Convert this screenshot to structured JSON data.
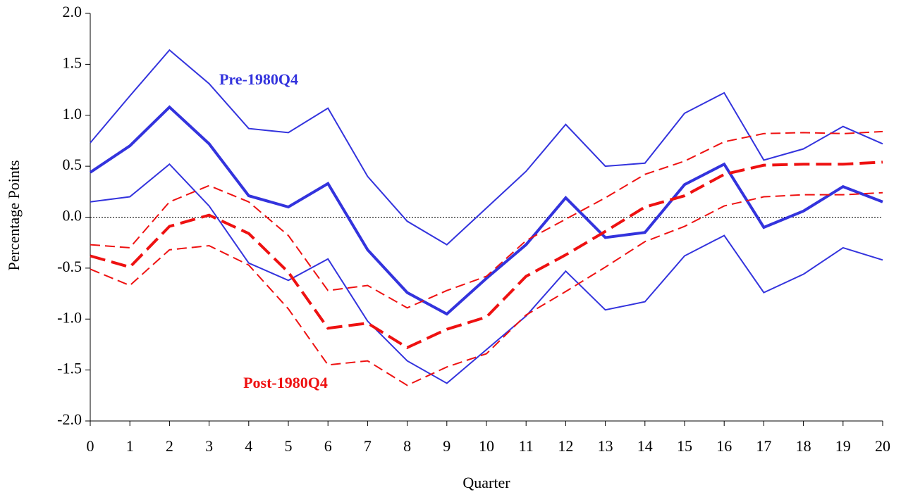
{
  "chart_data": {
    "type": "line",
    "x_label": "Quarter",
    "y_label": "Percentage Points",
    "annotations": [
      "Pre-1980Q4",
      "Post-1980Q4"
    ],
    "x": [
      0,
      1,
      2,
      3,
      4,
      5,
      6,
      7,
      8,
      9,
      10,
      11,
      12,
      13,
      14,
      15,
      16,
      17,
      18,
      19,
      20
    ],
    "xlim": [
      0,
      20
    ],
    "xticks": [
      0,
      1,
      2,
      3,
      4,
      5,
      6,
      7,
      8,
      9,
      10,
      11,
      12,
      13,
      14,
      15,
      16,
      17,
      18,
      19,
      20
    ],
    "ylim": [
      -2,
      2
    ],
    "yticks": [
      {
        "value": -2,
        "label": "-2.0"
      },
      {
        "value": -1.5,
        "label": "-1.5"
      },
      {
        "value": -1,
        "label": "-1.0"
      },
      {
        "value": -0.5,
        "label": "-0.5"
      },
      {
        "value": 0,
        "label": "0.0"
      },
      {
        "value": 0.5,
        "label": "0.5"
      },
      {
        "value": 1,
        "label": "1.0"
      },
      {
        "value": 1.5,
        "label": "1.5"
      },
      {
        "value": 2,
        "label": "2.0"
      }
    ],
    "zero_line": true,
    "series": [
      {
        "color": "#3333dd",
        "dashed": false,
        "width": 4,
        "values": [
          0.44,
          0.7,
          1.08,
          0.72,
          0.21,
          0.1,
          0.33,
          -0.32,
          -0.74,
          -0.95,
          -0.6,
          -0.27,
          0.19,
          -0.2,
          -0.15,
          0.32,
          0.52,
          -0.1,
          0.06,
          0.3,
          0.15
        ]
      },
      {
        "color": "#3333dd",
        "dashed": false,
        "width": 2,
        "values": [
          0.73,
          1.19,
          1.64,
          1.31,
          0.87,
          0.83,
          1.07,
          0.4,
          -0.04,
          -0.27,
          0.09,
          0.45,
          0.91,
          0.5,
          0.53,
          1.02,
          1.22,
          0.56,
          0.67,
          0.89,
          0.72
        ]
      },
      {
        "color": "#3333dd",
        "dashed": false,
        "width": 2,
        "values": [
          0.15,
          0.2,
          0.52,
          0.11,
          -0.45,
          -0.62,
          -0.41,
          -1.02,
          -1.41,
          -1.63,
          -1.3,
          -0.97,
          -0.53,
          -0.91,
          -0.83,
          -0.38,
          -0.18,
          -0.74,
          -0.56,
          -0.3,
          -0.42
        ]
      },
      {
        "color": "#ee1111",
        "dashed": true,
        "width": 4,
        "values": [
          -0.38,
          -0.49,
          -0.09,
          0.02,
          -0.16,
          -0.54,
          -1.09,
          -1.04,
          -1.28,
          -1.1,
          -0.98,
          -0.58,
          -0.37,
          -0.14,
          0.1,
          0.21,
          0.42,
          0.51,
          0.52,
          0.52,
          0.54
        ]
      },
      {
        "color": "#ee1111",
        "dashed": true,
        "width": 2,
        "values": [
          -0.27,
          -0.3,
          0.15,
          0.31,
          0.15,
          -0.18,
          -0.72,
          -0.67,
          -0.89,
          -0.72,
          -0.58,
          -0.23,
          -0.02,
          0.19,
          0.42,
          0.55,
          0.74,
          0.82,
          0.83,
          0.82,
          0.84
        ]
      },
      {
        "color": "#ee1111",
        "dashed": true,
        "width": 2,
        "values": [
          -0.51,
          -0.67,
          -0.32,
          -0.28,
          -0.47,
          -0.9,
          -1.45,
          -1.41,
          -1.65,
          -1.47,
          -1.34,
          -0.96,
          -0.73,
          -0.49,
          -0.24,
          -0.09,
          0.11,
          0.2,
          0.22,
          0.22,
          0.24
        ]
      }
    ]
  }
}
